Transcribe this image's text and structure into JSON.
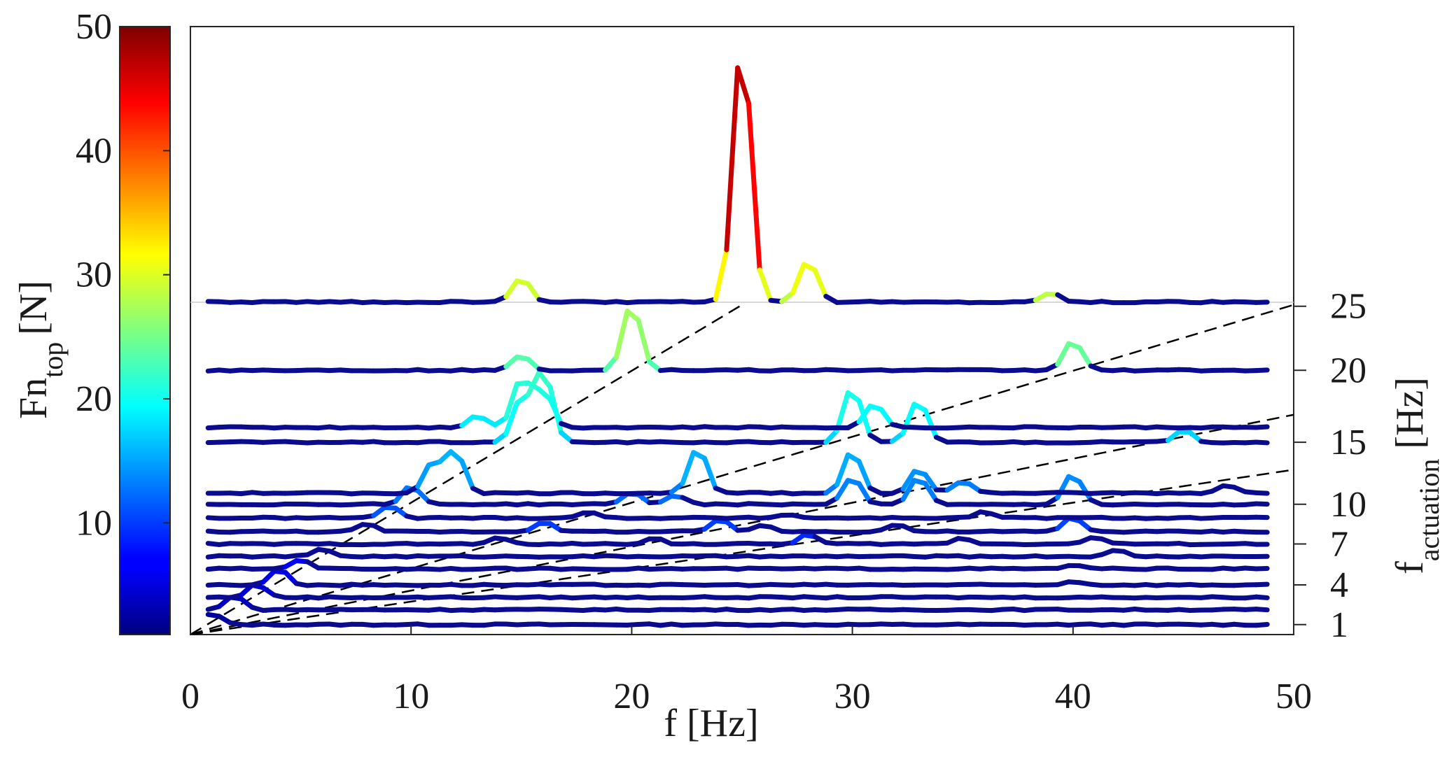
{
  "chart_data": {
    "type": "line",
    "subtype": "waterfall-spectrum",
    "xlabel": "f [Hz]",
    "xlim": [
      0,
      50
    ],
    "xticks": [
      "0",
      "10",
      "20",
      "30",
      "40",
      "50"
    ],
    "colorbar": {
      "label_main": "Fn",
      "label_sub": "top",
      "label_unit": "[N]",
      "range": [
        1,
        50
      ],
      "ticks": [
        "10",
        "20",
        "30",
        "40",
        "50"
      ],
      "colormap": "jet"
    },
    "right_axis": {
      "label_main": "f",
      "label_sub": "actuation",
      "label_unit": "[Hz]",
      "ticks": [
        "1",
        "4",
        "7",
        "10",
        "15",
        "20",
        "25"
      ],
      "range": [
        0,
        27
      ]
    },
    "grid": false,
    "box": true,
    "reference_lines": [
      {
        "style": "dashed",
        "color": "#000000",
        "ratio": 1
      },
      {
        "style": "dashed",
        "color": "#000000",
        "ratio": 2
      },
      {
        "style": "dashed",
        "color": "#000000",
        "ratio": 3
      },
      {
        "style": "dashed",
        "color": "#000000",
        "ratio": 4
      }
    ],
    "series": [
      {
        "factuation": 1,
        "base": 1.8,
        "peaks": [
          [
            1,
            0.9
          ]
        ]
      },
      {
        "factuation": 2,
        "base": 3.0,
        "peaks": [
          [
            2,
            1.2
          ]
        ]
      },
      {
        "factuation": 3,
        "base": 4.0,
        "peaks": [
          [
            3,
            1.1
          ]
        ]
      },
      {
        "factuation": 4,
        "base": 5.0,
        "peaks": [
          [
            4,
            1.3
          ],
          [
            40,
            0.3
          ]
        ]
      },
      {
        "factuation": 5,
        "base": 6.3,
        "peaks": [
          [
            5,
            0.8
          ],
          [
            40,
            0.3
          ]
        ]
      },
      {
        "factuation": 6,
        "base": 7.3,
        "peaks": [
          [
            6,
            0.6
          ],
          [
            42,
            0.5
          ]
        ]
      },
      {
        "factuation": 7,
        "base": 8.3,
        "peaks": [
          [
            14,
            0.5
          ],
          [
            21,
            0.5
          ],
          [
            28,
            0.8
          ],
          [
            35,
            0.5
          ],
          [
            41,
            0.6
          ]
        ]
      },
      {
        "factuation": 8,
        "base": 9.3,
        "peaks": [
          [
            8,
            0.6
          ],
          [
            16,
            0.8
          ],
          [
            24,
            1.0
          ],
          [
            26,
            0.5
          ],
          [
            32,
            0.6
          ],
          [
            40,
            1.2
          ]
        ]
      },
      {
        "factuation": 9,
        "base": 10.4,
        "peaks": [
          [
            9,
            1.0
          ],
          [
            18,
            0.5
          ],
          [
            27,
            0.3
          ],
          [
            36,
            0.5
          ]
        ]
      },
      {
        "factuation": 10,
        "base": 11.5,
        "peaks": [
          [
            10,
            1.5
          ],
          [
            20,
            1.0
          ],
          [
            22,
            0.8
          ],
          [
            30,
            2.2
          ],
          [
            33,
            2.2
          ],
          [
            40,
            2.5
          ]
        ]
      },
      {
        "factuation": 12,
        "base": 12.4,
        "peaks": [
          [
            11,
            2.5
          ],
          [
            12,
            3.5
          ],
          [
            23,
            3.8
          ],
          [
            30,
            3.5
          ],
          [
            33,
            2.0
          ],
          [
            35,
            1.0
          ],
          [
            47,
            0.7
          ]
        ]
      },
      {
        "factuation": 15,
        "base": 16.5,
        "peaks": [
          [
            15,
            3.5
          ],
          [
            16,
            6.0
          ],
          [
            30,
            4.5
          ],
          [
            33,
            3.5
          ],
          [
            45,
            1.0
          ]
        ]
      },
      {
        "factuation": 16,
        "base": 17.7,
        "peaks": [
          [
            13,
            1.0
          ],
          [
            15,
            4.0
          ],
          [
            16,
            3.0
          ],
          [
            31,
            2.0
          ]
        ]
      },
      {
        "factuation": 20,
        "base": 22.3,
        "peaks": [
          [
            15,
            1.2
          ],
          [
            20,
            5.5
          ],
          [
            40,
            2.5
          ]
        ]
      },
      {
        "factuation": 25,
        "base": 27.8,
        "peaks": [
          [
            15,
            2.0
          ],
          [
            25,
            21.5
          ],
          [
            28,
            3.5
          ],
          [
            39,
            0.8
          ]
        ]
      }
    ]
  }
}
